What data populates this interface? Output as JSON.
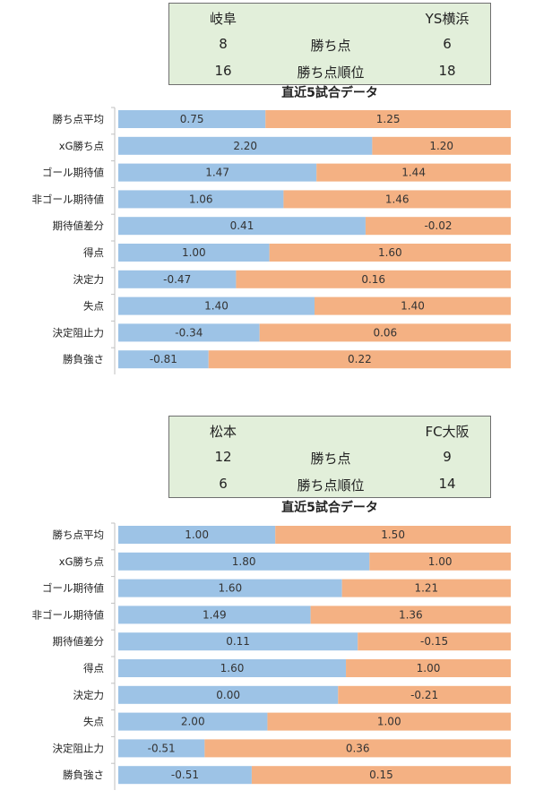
{
  "panels": [
    {
      "matchup": {
        "home_team": "岐阜",
        "away_team": "YS横浜",
        "rows": [
          {
            "home": "8",
            "label": "勝ち点",
            "away": "6"
          },
          {
            "home": "16",
            "label": "勝ち点順位",
            "away": "18"
          }
        ]
      },
      "section_title": "直近5試合データ"
    },
    {
      "matchup": {
        "home_team": "松本",
        "away_team": "FC大阪",
        "rows": [
          {
            "home": "12",
            "label": "勝ち点",
            "away": "9"
          },
          {
            "home": "6",
            "label": "勝ち点順位",
            "away": "14"
          }
        ]
      },
      "section_title": "直近5試合データ"
    }
  ],
  "colors": {
    "home_bar": "#9dc3e6",
    "away_bar": "#f4b183",
    "box_bg": "#e2efda"
  },
  "chart_data": [
    {
      "type": "bar",
      "orientation": "horizontal-100%-stacked",
      "categories": [
        "勝ち点平均",
        "xG勝ち点",
        "ゴール期待値",
        "非ゴール期待値",
        "期待値差分",
        "得点",
        "決定力",
        "失点",
        "決定阻止力",
        "勝負強さ"
      ],
      "series": [
        {
          "values": [
            0.75,
            2.2,
            1.47,
            1.06,
            0.41,
            1.0,
            -0.47,
            1.4,
            -0.34,
            -0.81
          ],
          "labels": [
            "0.75",
            "2.20",
            "1.47",
            "1.06",
            "0.41",
            "1.00",
            "-0.47",
            "1.40",
            "-0.34",
            "-0.81"
          ]
        },
        {
          "values": [
            1.25,
            1.2,
            1.44,
            1.46,
            -0.02,
            1.6,
            0.16,
            1.4,
            0.06,
            0.22
          ],
          "labels": [
            "1.25",
            "1.20",
            "1.44",
            "1.46",
            "-0.02",
            "1.60",
            "0.16",
            "1.40",
            "0.06",
            "0.22"
          ]
        }
      ],
      "home_share": [
        0.375,
        0.647,
        0.505,
        0.421,
        0.63,
        0.385,
        0.3,
        0.5,
        0.36,
        0.23
      ]
    },
    {
      "type": "bar",
      "orientation": "horizontal-100%-stacked",
      "categories": [
        "勝ち点平均",
        "xG勝ち点",
        "ゴール期待値",
        "非ゴール期待値",
        "期待値差分",
        "得点",
        "決定力",
        "失点",
        "決定阻止力",
        "勝負強さ"
      ],
      "series": [
        {
          "values": [
            1.0,
            1.8,
            1.6,
            1.49,
            0.11,
            1.6,
            0.0,
            2.0,
            -0.51,
            -0.51
          ],
          "labels": [
            "1.00",
            "1.80",
            "1.60",
            "1.49",
            "0.11",
            "1.60",
            "0.00",
            "2.00",
            "-0.51",
            "-0.51"
          ]
        },
        {
          "values": [
            1.5,
            1.0,
            1.21,
            1.36,
            -0.15,
            1.0,
            -0.21,
            1.0,
            0.36,
            0.15
          ],
          "labels": [
            "1.50",
            "1.00",
            "1.21",
            "1.36",
            "-0.15",
            "1.00",
            "-0.21",
            "1.00",
            "0.36",
            "0.15"
          ]
        }
      ],
      "home_share": [
        0.4,
        0.64,
        0.57,
        0.49,
        0.61,
        0.58,
        0.56,
        0.38,
        0.22,
        0.34
      ]
    }
  ]
}
